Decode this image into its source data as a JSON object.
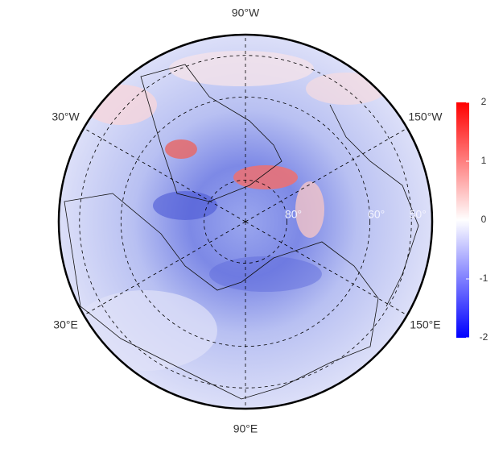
{
  "map": {
    "longitude_labels": [
      {
        "value": -90,
        "label": "90°W"
      },
      {
        "value": -30,
        "label": "30°W"
      },
      {
        "value": -150,
        "label": "150°W"
      },
      {
        "value": 30,
        "label": "30°E"
      },
      {
        "value": 150,
        "label": "150°E"
      },
      {
        "value": 90,
        "label": "90°E"
      }
    ],
    "latitude_labels": [
      {
        "value": 80,
        "label": "80°"
      },
      {
        "value": 60,
        "label": "60°"
      },
      {
        "value": 50,
        "label": "50°"
      }
    ],
    "lat_lim": [
      45,
      90
    ]
  },
  "colorbar": {
    "lim": [
      -2,
      2
    ],
    "ticks": [
      -2,
      -1,
      0,
      1,
      2
    ],
    "colors": [
      "#0000ff",
      "#ffffff",
      "#ff0000"
    ]
  }
}
